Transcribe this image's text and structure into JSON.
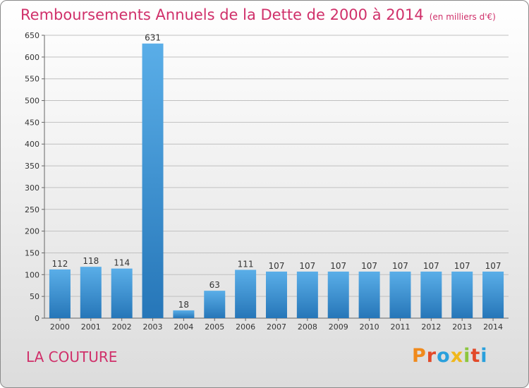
{
  "title": "Remboursements Annuels de la Dette de 2000 à 2014",
  "unit": "(en milliers d'€)",
  "commune": "LA COUTURE",
  "logo": "Proxiti",
  "colors": {
    "title": "#d0306a",
    "bar_top": "#5aaee8",
    "bar_bottom": "#2676b8",
    "grid": "#c0c0c0",
    "logo_letters": [
      "#f08a1c",
      "#e24a2a",
      "#2aa0dc",
      "#f0b81c",
      "#8cc63e",
      "#e24a2a",
      "#2aa0dc"
    ]
  },
  "chart_data": {
    "type": "bar",
    "title": "Remboursements Annuels de la Dette de 2000 à 2014",
    "categories": [
      "2000",
      "2001",
      "2002",
      "2003",
      "2004",
      "2005",
      "2006",
      "2007",
      "2008",
      "2009",
      "2010",
      "2011",
      "2012",
      "2013",
      "2014"
    ],
    "values": [
      112,
      118,
      114,
      631,
      18,
      63,
      111,
      107,
      107,
      107,
      107,
      107,
      107,
      107,
      107
    ],
    "ylim": [
      0,
      650
    ],
    "yticks": [
      0,
      50,
      100,
      150,
      200,
      250,
      300,
      350,
      400,
      450,
      500,
      550,
      600,
      650
    ],
    "grid": true,
    "xlabel": "",
    "ylabel": ""
  }
}
